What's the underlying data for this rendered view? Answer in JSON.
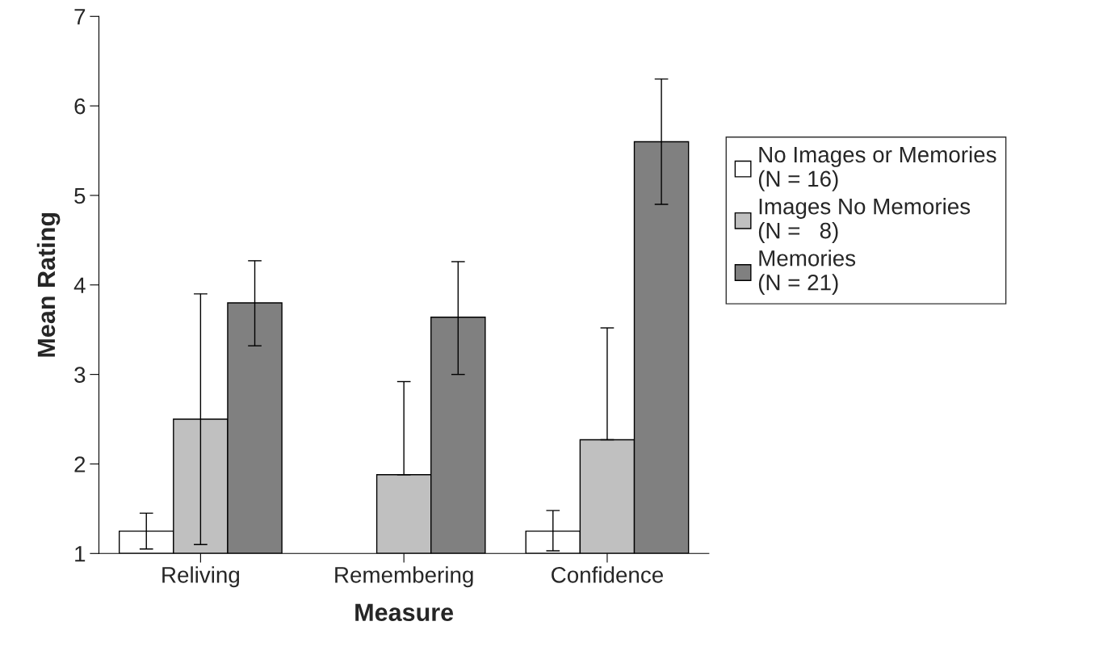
{
  "chart_data": {
    "type": "bar",
    "xlabel": "Measure",
    "ylabel": "Mean Rating",
    "categories": [
      "Reliving",
      "Remembering",
      "Confidence"
    ],
    "series": [
      {
        "name": "No Images or Memories\n(N = 16)",
        "color": "#ffffff",
        "values": [
          1.25,
          null,
          1.25
        ],
        "errors": [
          [
            1.05,
            1.45
          ],
          null,
          [
            1.03,
            1.48
          ]
        ]
      },
      {
        "name": "Images No Memories\n(N =   8)",
        "color": "#c0c0c0",
        "values": [
          2.5,
          1.88,
          2.27
        ],
        "errors": [
          [
            1.1,
            3.9
          ],
          [
            1.88,
            2.92
          ],
          [
            2.27,
            3.52
          ]
        ]
      },
      {
        "name": "Memories\n(N = 21)",
        "color": "#808080",
        "values": [
          3.8,
          3.64,
          5.6
        ],
        "errors": [
          [
            3.32,
            4.27
          ],
          [
            3.0,
            4.26
          ],
          [
            4.9,
            6.3
          ]
        ]
      }
    ],
    "ylim": [
      1,
      7
    ],
    "yticks": [
      1,
      2,
      3,
      4,
      5,
      6,
      7
    ],
    "grid": false,
    "legend": "right"
  }
}
